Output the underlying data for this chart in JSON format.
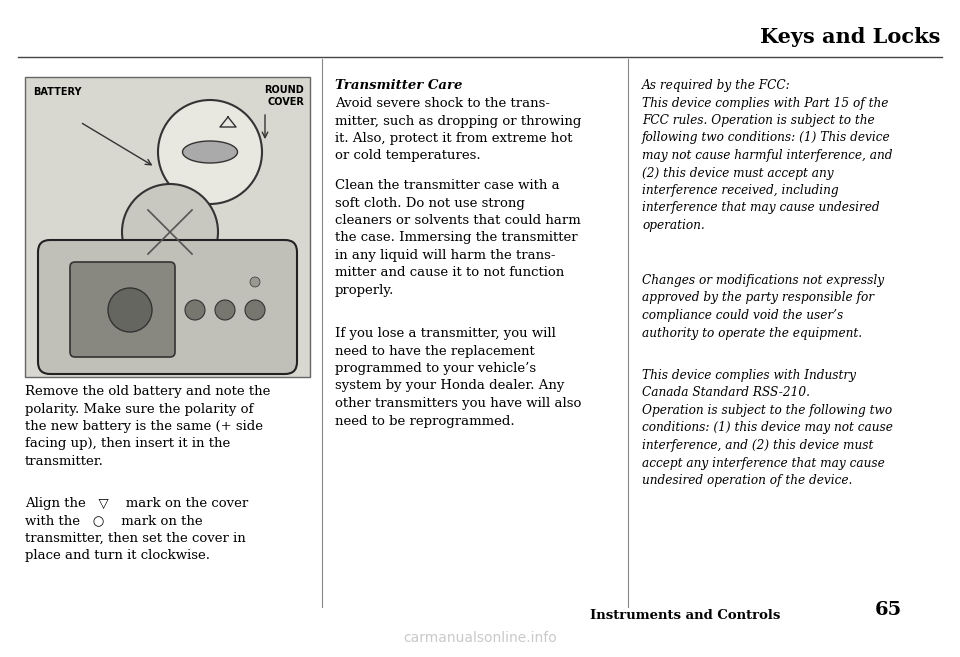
{
  "page_bg": "#ffffff",
  "title": "Keys and Locks",
  "footer_left": "Instruments and Controls",
  "footer_page": "65",
  "watermark": "carmanualsonline.info",
  "title_fontsize": 15,
  "body_fontsize": 9.0,
  "col2_heading": "Transmitter Care",
  "col1_para1": "Remove the old battery and note the\npolarity. Make sure the polarity of\nthe new battery is the same (+ side\nfacing up), then insert it in the\ntransmitter.",
  "col1_para2": "Align the   ▽    mark on the cover\nwith the   ○    mark on the\ntransmitter, then set the cover in\nplace and turn it clockwise.",
  "col2_para1": "Avoid severe shock to the trans-\nmitter, such as dropping or throwing\nit. Also, protect it from extreme hot\nor cold temperatures.",
  "col2_para2": "Clean the transmitter case with a\nsoft cloth. Do not use strong\ncleaners or solvents that could harm\nthe case. Immersing the transmitter\nin any liquid will harm the trans-\nmitter and cause it to not function\nproperly.",
  "col2_para3": "If you lose a transmitter, you will\nneed to have the replacement\nprogrammed to your vehicle’s\nsystem by your Honda dealer. Any\nother transmitters you have will also\nneed to be reprogrammed.",
  "col3_para1": "As required by the FCC:\nThis device complies with Part 15 of the\nFCC rules. Operation is subject to the\nfollowing two conditions: (1) This device\nmay not cause harmful interference, and\n(2) this device must accept any\ninterference received, including\ninterference that may cause undesired\noperation.",
  "col3_para2": "Changes or modifications not expressly\napproved by the party responsible for\ncompliance could void the user’s\nauthority to operate the equipment.",
  "col3_para3": "This device complies with Industry\nCanada Standard RSS-210.\nOperation is subject to the following two\nconditions: (1) this device may not cause\ninterference, and (2) this device must\naccept any interference that may cause\nundesired operation of the device.",
  "image_bg": "#d8d8d0",
  "image_label_battery": "BATTERY",
  "image_label_round_cover": "ROUND\nCOVER"
}
